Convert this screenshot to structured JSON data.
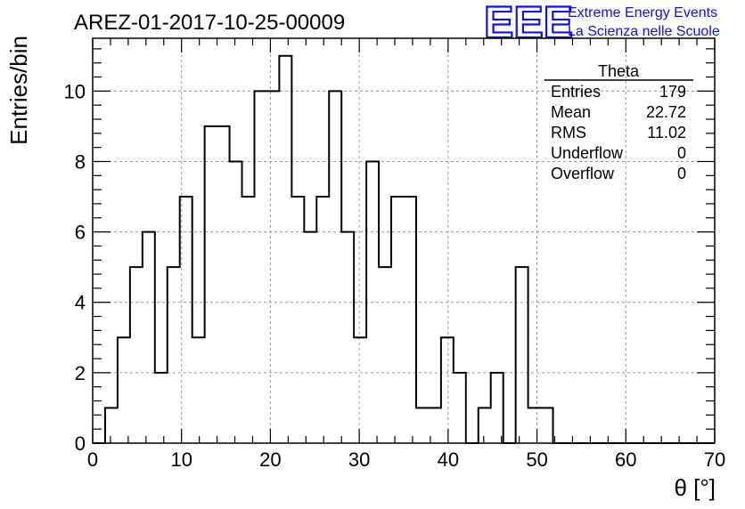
{
  "chart_data": {
    "type": "histogram",
    "title": "AREZ-01-2017-10-25-00009",
    "xlabel": "θ [°]",
    "ylabel": "Entries/bin",
    "xlim": [
      0,
      70
    ],
    "ylim": [
      0,
      11.5
    ],
    "grid": true,
    "bin_width": 1.4,
    "bin_edges_start": 0,
    "values": [
      0,
      1,
      3,
      5,
      6,
      2,
      5,
      7,
      3,
      9,
      9,
      8,
      7,
      10,
      10,
      11,
      7,
      6,
      7,
      10,
      6,
      3,
      8,
      5,
      7,
      7,
      1,
      1,
      3,
      2,
      0,
      1,
      2,
      0,
      5,
      1,
      1,
      0,
      0,
      0,
      0,
      0,
      0,
      0,
      0,
      0,
      0,
      0,
      0,
      0
    ],
    "x_ticks": [
      0,
      10,
      20,
      30,
      40,
      50,
      60,
      70
    ],
    "y_ticks": [
      0,
      2,
      4,
      6,
      8,
      10
    ],
    "stats_box": {
      "name": "Theta",
      "rows": [
        {
          "label": "Entries",
          "value": "179"
        },
        {
          "label": "Mean",
          "value": "22.72"
        },
        {
          "label": "RMS",
          "value": "11.02"
        },
        {
          "label": "Underflow",
          "value": "0"
        },
        {
          "label": "Overflow",
          "value": "0"
        }
      ]
    }
  },
  "logo": {
    "mark": "EEE",
    "line1": "Extreme Energy Events",
    "line2": "La Scienza nelle Scuole"
  }
}
